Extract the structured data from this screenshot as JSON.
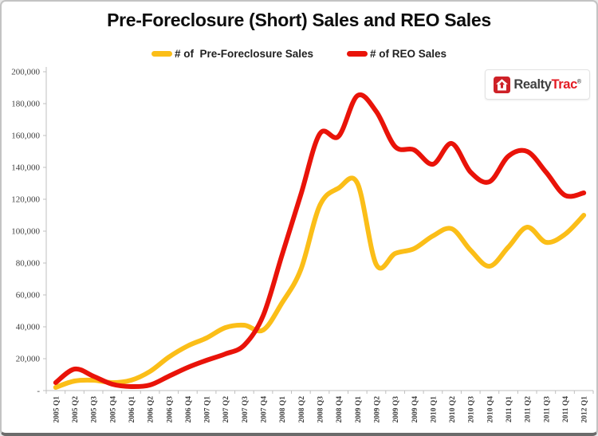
{
  "title": "Pre-Foreclosure (Short) Sales and REO Sales",
  "legend": [
    {
      "label": "# of  Pre-Foreclosure Sales",
      "color": "#FBBE18"
    },
    {
      "label": "# of REO Sales",
      "color": "#E91309"
    }
  ],
  "logo": {
    "brand_part1": "Realty",
    "brand_part2": "Trac",
    "registered_mark": "®",
    "icon": "house-arrow-icon",
    "icon_color": "#CE2127",
    "brand_part1_color": "#3f3f3f",
    "brand_part2_color": "#E31B23"
  },
  "axis_colors": {
    "line": "#bfbfbf",
    "label": "#3f3f3f"
  },
  "chart_data": {
    "type": "line",
    "title": "Pre-Foreclosure (Short) Sales and REO Sales",
    "smoothed": true,
    "grid": false,
    "legend_position": "top",
    "xlabel": "",
    "ylabel": "",
    "ylim": [
      0,
      200000
    ],
    "ytick_step": 20000,
    "zero_tick_label": "-",
    "categories": [
      "2005 Q1",
      "2005 Q2",
      "2005 Q3",
      "2005 Q4",
      "2006 Q1",
      "2006 Q2",
      "2006 Q3",
      "2006 Q4",
      "2007 Q1",
      "2007 Q2",
      "2007 Q3",
      "2007 Q4",
      "2008 Q1",
      "2008 Q2",
      "2008 Q3",
      "2008 Q4",
      "2009 Q1",
      "2009 Q2",
      "2009 Q3",
      "2009 Q4",
      "2010 Q1",
      "2010 Q2",
      "2010 Q3",
      "2010 Q4",
      "2011 Q1",
      "2011 Q2",
      "2011 Q3",
      "2011 Q4",
      "2012 Q1"
    ],
    "series": [
      {
        "name": "# of  Pre-Foreclosure Sales",
        "color": "#FBBE18",
        "values": [
          2000,
          6000,
          6500,
          5000,
          6500,
          12000,
          21000,
          28000,
          33000,
          39500,
          41000,
          38000,
          55000,
          76000,
          116000,
          127000,
          130000,
          79000,
          86000,
          89000,
          97000,
          101500,
          88000,
          78000,
          90000,
          102500,
          93000,
          98000,
          110000
        ]
      },
      {
        "name": "# of REO Sales",
        "color": "#E91309",
        "values": [
          5000,
          13500,
          9000,
          4000,
          2500,
          3500,
          9000,
          14500,
          19000,
          23000,
          28500,
          47000,
          85000,
          123000,
          161000,
          159500,
          185000,
          175000,
          153000,
          151000,
          142000,
          155000,
          137000,
          131000,
          147000,
          150000,
          137000,
          122500,
          124000
        ]
      }
    ]
  }
}
